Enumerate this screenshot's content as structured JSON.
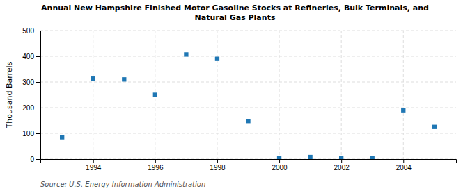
{
  "chart_data": {
    "type": "scatter",
    "title": "Annual New Hampshire Finished Motor Gasoline Stocks at Refineries, Bulk Terminals, and\nNatural Gas Plants",
    "y_label": "Thousand Barrels",
    "source": "Source: U.S. Energy Information Administration",
    "x": [
      1993,
      1994,
      1995,
      1996,
      1997,
      1998,
      1999,
      2000,
      2001,
      2002,
      2003,
      2004,
      2005
    ],
    "values": [
      85,
      313,
      310,
      250,
      407,
      390,
      148,
      5,
      8,
      5,
      5,
      190,
      125
    ],
    "marker": "square",
    "xlim": [
      1992.3,
      2005.7
    ],
    "xticks": [
      1994,
      1996,
      1998,
      2000,
      2002,
      2004
    ],
    "ylim": [
      0,
      500
    ],
    "yticks": [
      0,
      100,
      200,
      300,
      400,
      500
    ],
    "grid": true
  }
}
